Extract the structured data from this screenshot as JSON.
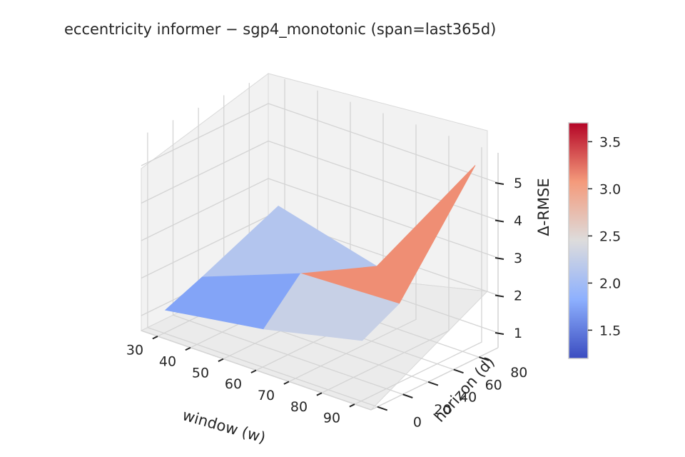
{
  "chart_data": {
    "type": "surface3d",
    "title": "eccentricity  informer − sgp4_monotonic  (span=last365d)",
    "xlabel": "window (w)",
    "ylabel": "horizon (d)",
    "zlabel": "Δ-RMSE",
    "x_ticks": [
      "30",
      "40",
      "50",
      "60",
      "70",
      "80",
      "90"
    ],
    "y_ticks": [
      "0",
      "20",
      "40",
      "60",
      "80"
    ],
    "z_ticks": [
      "1",
      "2",
      "3",
      "4",
      "5"
    ],
    "x": [
      30,
      60,
      90
    ],
    "y": [
      1,
      30,
      90
    ],
    "z": [
      [
        1.2,
        1.6,
        2.2
      ],
      [
        1.6,
        2.6,
        2.7
      ],
      [
        2.5,
        1.8,
        5.4
      ]
    ],
    "colorbar": {
      "colormap": "coolwarm",
      "range": [
        1.2,
        3.7
      ],
      "ticks": [
        "1.5",
        "2.0",
        "2.5",
        "3.0",
        "3.5"
      ],
      "tick_values": [
        1.5,
        2.0,
        2.5,
        3.0,
        3.5
      ]
    },
    "grid": true
  }
}
